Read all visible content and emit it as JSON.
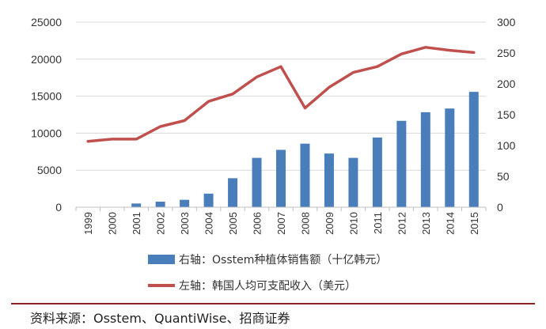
{
  "chart_data": {
    "type": "bar+line",
    "title": "",
    "categories": [
      "1999",
      "2000",
      "2001",
      "2002",
      "2003",
      "2004",
      "2005",
      "2006",
      "2007",
      "2008",
      "2009",
      "2010",
      "2011",
      "2012",
      "2013",
      "2014",
      "2015"
    ],
    "series": [
      {
        "name": "右轴：Osstem种植体销售额（十亿韩元）",
        "type": "bar",
        "axis": "right",
        "color": "#4a7ebb",
        "values": [
          0,
          0,
          6,
          9,
          12,
          22,
          47,
          80,
          93,
          103,
          87,
          80,
          113,
          140,
          154,
          160,
          187
        ]
      },
      {
        "name": "左轴：韩国人均可支配收入（美元）",
        "type": "line",
        "axis": "left",
        "color": "#c0504d",
        "values": [
          8900,
          9200,
          9200,
          10900,
          11700,
          14300,
          15300,
          17600,
          19000,
          13400,
          16200,
          18200,
          19000,
          20700,
          21600,
          21200,
          20900
        ]
      }
    ],
    "left_axis": {
      "min": 0,
      "max": 25000,
      "ticks": [
        "0",
        "5000",
        "10000",
        "15000",
        "20000",
        "25000"
      ]
    },
    "right_axis": {
      "min": 0,
      "max": 300,
      "ticks": [
        "0",
        "50",
        "100",
        "150",
        "200",
        "250",
        "300"
      ]
    },
    "grid": true,
    "legend_position": "bottom",
    "source": "资料来源：Osstem、QuantiWise、招商证券"
  }
}
